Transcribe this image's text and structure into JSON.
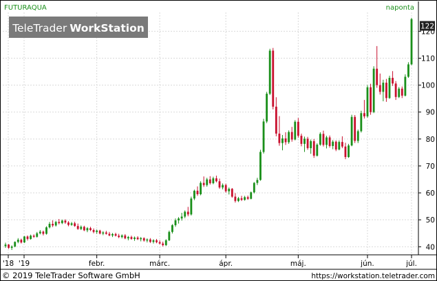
{
  "header": {
    "symbol": "FUTURAQUA",
    "period": "naponta",
    "logo_light": "TeleTrader",
    "logo_bold": "WorkStation"
  },
  "footer": {
    "copyright": "© 2019 TeleTrader Software GmbH",
    "url": "https://workstation.teletrader.com"
  },
  "colors": {
    "up": "#1a8f1a",
    "down": "#c8102e",
    "grid": "#d9d9d9",
    "last_price_bg": "#222222",
    "header_text": "#1a8f1a",
    "logo_bg": "#7a7a7a"
  },
  "chart_data": {
    "type": "candlestick",
    "y_axis": {
      "ticks": [
        40,
        50,
        60,
        70,
        80,
        90,
        100,
        110,
        120
      ],
      "ylim": [
        37,
        127
      ],
      "position": "right"
    },
    "x_axis": {
      "ticks": [
        {
          "label": "'18",
          "date": "2018-12-31"
        },
        {
          "label": "'19",
          "date": "2019-01-02"
        },
        {
          "label": "febr.",
          "date": "2019-02-01"
        },
        {
          "label": "márc.",
          "date": "2019-03-01"
        },
        {
          "label": "ápr.",
          "date": "2019-04-01"
        },
        {
          "label": "máj.",
          "date": "2019-05-02"
        },
        {
          "label": "jún.",
          "date": "2019-06-03"
        },
        {
          "label": "júl.",
          "date": "2019-07-01"
        }
      ]
    },
    "last_price": 122,
    "grid": true,
    "candles": [
      [
        40.2,
        41.5,
        39.6,
        40.8
      ],
      [
        40.8,
        41.0,
        39.2,
        39.6
      ],
      [
        39.6,
        40.5,
        38.8,
        40.1
      ],
      [
        40.1,
        42.0,
        39.8,
        41.8
      ],
      [
        41.8,
        43.2,
        41.3,
        42.6
      ],
      [
        42.6,
        43.0,
        41.2,
        41.6
      ],
      [
        41.6,
        44.0,
        41.4,
        43.8
      ],
      [
        43.8,
        44.2,
        42.3,
        42.9
      ],
      [
        42.9,
        44.5,
        42.6,
        44.1
      ],
      [
        44.1,
        44.6,
        43.3,
        43.7
      ],
      [
        43.7,
        45.5,
        43.4,
        45.0
      ],
      [
        45.0,
        46.2,
        44.6,
        45.6
      ],
      [
        45.6,
        46.0,
        44.2,
        44.8
      ],
      [
        44.8,
        47.6,
        44.5,
        47.2
      ],
      [
        47.2,
        49.2,
        46.8,
        48.5
      ],
      [
        48.5,
        49.8,
        47.3,
        47.9
      ],
      [
        47.9,
        49.6,
        47.5,
        49.2
      ],
      [
        49.2,
        50.3,
        48.3,
        48.8
      ],
      [
        48.8,
        50.1,
        48.4,
        49.7
      ],
      [
        49.7,
        50.2,
        48.5,
        49.0
      ],
      [
        49.0,
        49.5,
        47.6,
        48.1
      ],
      [
        48.1,
        49.2,
        47.8,
        48.7
      ],
      [
        48.7,
        49.3,
        47.4,
        47.7
      ],
      [
        47.7,
        48.6,
        46.3,
        46.6
      ],
      [
        46.6,
        47.9,
        46.2,
        47.4
      ],
      [
        47.4,
        47.8,
        45.8,
        46.1
      ],
      [
        46.1,
        47.3,
        45.4,
        46.9
      ],
      [
        46.9,
        47.4,
        45.8,
        46.2
      ],
      [
        46.2,
        46.8,
        45.0,
        45.5
      ],
      [
        45.5,
        46.4,
        44.8,
        46.0
      ],
      [
        46.0,
        46.3,
        44.6,
        44.9
      ],
      [
        44.9,
        45.8,
        44.3,
        45.3
      ],
      [
        45.3,
        45.9,
        44.5,
        44.8
      ],
      [
        44.8,
        45.5,
        43.9,
        44.2
      ],
      [
        44.2,
        45.1,
        43.6,
        44.7
      ],
      [
        44.7,
        45.2,
        43.8,
        44.1
      ],
      [
        44.1,
        44.8,
        43.2,
        43.6
      ],
      [
        43.6,
        44.6,
        43.1,
        44.2
      ],
      [
        44.2,
        44.7,
        42.8,
        43.1
      ],
      [
        43.1,
        44.0,
        42.4,
        43.6
      ],
      [
        43.6,
        44.1,
        42.6,
        42.9
      ],
      [
        42.9,
        43.8,
        42.2,
        43.4
      ],
      [
        43.4,
        43.9,
        42.5,
        42.8
      ],
      [
        42.8,
        43.6,
        42.0,
        43.2
      ],
      [
        43.2,
        43.5,
        41.9,
        42.3
      ],
      [
        42.3,
        43.1,
        41.6,
        42.7
      ],
      [
        42.7,
        43.2,
        41.4,
        41.8
      ],
      [
        41.8,
        42.8,
        41.2,
        42.4
      ],
      [
        42.4,
        42.9,
        41.3,
        41.7
      ],
      [
        41.7,
        42.4,
        40.9,
        41.2
      ],
      [
        41.2,
        41.9,
        40.1,
        40.6
      ],
      [
        40.6,
        42.8,
        40.3,
        42.4
      ],
      [
        42.4,
        46.0,
        42.1,
        45.5
      ],
      [
        45.5,
        48.4,
        44.9,
        48.0
      ],
      [
        48.0,
        50.5,
        47.4,
        49.8
      ],
      [
        49.8,
        51.0,
        48.6,
        50.5
      ],
      [
        50.5,
        52.6,
        49.7,
        51.2
      ],
      [
        51.2,
        53.5,
        50.6,
        53.0
      ],
      [
        53.0,
        54.8,
        51.3,
        52.0
      ],
      [
        52.0,
        58.6,
        51.6,
        57.9
      ],
      [
        57.9,
        61.2,
        57.3,
        60.8
      ],
      [
        60.8,
        62.4,
        58.9,
        59.5
      ],
      [
        59.5,
        64.3,
        59.1,
        63.7
      ],
      [
        63.7,
        66.1,
        62.2,
        62.9
      ],
      [
        62.9,
        65.6,
        62.3,
        65.0
      ],
      [
        65.0,
        66.2,
        63.1,
        63.6
      ],
      [
        63.6,
        66.0,
        63.2,
        65.4
      ],
      [
        65.4,
        66.4,
        63.9,
        64.3
      ],
      [
        64.3,
        65.3,
        61.5,
        62.0
      ],
      [
        62.0,
        63.5,
        61.3,
        62.9
      ],
      [
        62.9,
        63.4,
        60.1,
        60.6
      ],
      [
        60.6,
        62.0,
        59.4,
        61.5
      ],
      [
        61.5,
        61.8,
        58.2,
        58.6
      ],
      [
        58.6,
        59.9,
        56.4,
        57.0
      ],
      [
        57.0,
        58.5,
        56.6,
        58.0
      ],
      [
        58.0,
        58.9,
        57.0,
        57.4
      ],
      [
        57.4,
        58.9,
        57.1,
        58.4
      ],
      [
        58.4,
        59.0,
        57.4,
        57.8
      ],
      [
        57.8,
        60.5,
        57.6,
        60.2
      ],
      [
        60.2,
        64.0,
        59.8,
        63.7
      ],
      [
        63.7,
        65.6,
        62.9,
        64.8
      ],
      [
        64.8,
        76.0,
        64.5,
        75.2
      ],
      [
        75.2,
        87.5,
        74.6,
        86.5
      ],
      [
        86.5,
        97.5,
        85.9,
        96.8
      ],
      [
        96.8,
        113.5,
        96.3,
        112.8
      ],
      [
        112.8,
        113.8,
        91.0,
        92.0
      ],
      [
        92.0,
        95.5,
        81.0,
        82.0
      ],
      [
        82.0,
        88.5,
        77.5,
        78.5
      ],
      [
        78.5,
        81.5,
        75.8,
        80.2
      ],
      [
        80.2,
        82.5,
        77.8,
        78.8
      ],
      [
        78.8,
        83.2,
        78.2,
        82.6
      ],
      [
        82.6,
        84.5,
        79.0,
        79.8
      ],
      [
        79.8,
        87.0,
        79.5,
        86.4
      ],
      [
        86.4,
        87.8,
        80.5,
        81.2
      ],
      [
        81.2,
        82.0,
        77.3,
        78.2
      ],
      [
        78.2,
        80.9,
        75.2,
        80.1
      ],
      [
        80.1,
        80.8,
        76.0,
        76.6
      ],
      [
        76.6,
        79.8,
        74.5,
        79.2
      ],
      [
        79.2,
        80.0,
        73.0,
        73.8
      ],
      [
        73.8,
        78.4,
        73.5,
        77.9
      ],
      [
        77.9,
        82.5,
        77.5,
        81.9
      ],
      [
        81.9,
        83.1,
        77.2,
        77.8
      ],
      [
        77.8,
        81.2,
        76.5,
        80.6
      ],
      [
        80.6,
        81.3,
        76.8,
        77.4
      ],
      [
        77.4,
        79.6,
        76.2,
        79.0
      ],
      [
        79.0,
        79.5,
        75.5,
        76.1
      ],
      [
        76.1,
        79.5,
        75.8,
        78.9
      ],
      [
        78.9,
        81.0,
        76.6,
        77.2
      ],
      [
        77.2,
        78.6,
        72.5,
        73.3
      ],
      [
        73.3,
        78.2,
        73.0,
        77.6
      ],
      [
        77.6,
        89.0,
        77.3,
        88.2
      ],
      [
        88.2,
        88.9,
        78.5,
        79.3
      ],
      [
        79.3,
        83.5,
        78.5,
        82.9
      ],
      [
        82.9,
        90.5,
        82.4,
        89.6
      ],
      [
        89.6,
        94.5,
        87.6,
        88.4
      ],
      [
        88.4,
        100.0,
        87.9,
        99.2
      ],
      [
        99.2,
        100.5,
        89.0,
        90.0
      ],
      [
        90.0,
        107.0,
        89.6,
        106.1
      ],
      [
        106.1,
        114.5,
        99.0,
        100.0
      ],
      [
        100.0,
        104.3,
        96.5,
        97.5
      ],
      [
        97.5,
        102.0,
        94.0,
        100.9
      ],
      [
        100.9,
        102.3,
        93.8,
        95.2
      ],
      [
        95.2,
        103.5,
        94.9,
        102.7
      ],
      [
        102.7,
        105.2,
        99.7,
        100.6
      ],
      [
        100.6,
        101.5,
        94.5,
        95.6
      ],
      [
        95.6,
        99.3,
        95.2,
        98.7
      ],
      [
        98.7,
        99.5,
        95.2,
        96.1
      ],
      [
        96.1,
        104.0,
        95.8,
        103.1
      ],
      [
        103.1,
        108.5,
        102.7,
        107.7
      ],
      [
        107.7,
        125.0,
        107.4,
        124.5
      ]
    ]
  }
}
